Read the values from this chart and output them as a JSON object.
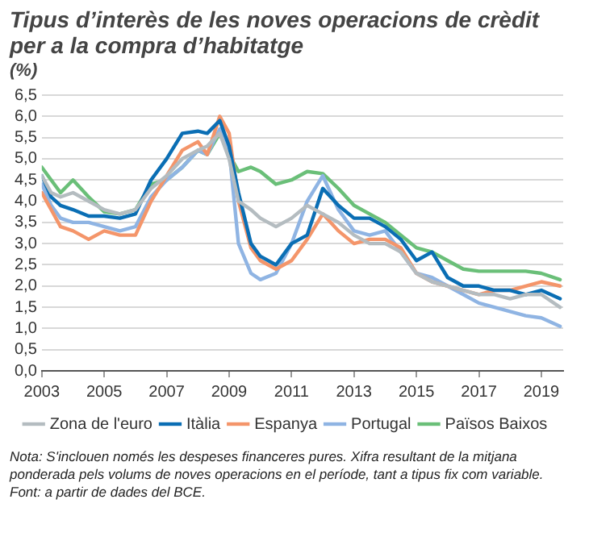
{
  "chart_data": {
    "type": "line",
    "title": "Tipus d’interès de les noves operacions de crèdit per a la compra d’habitatge",
    "ylabel": "(%)",
    "x": [
      2003,
      2003.3,
      2003.6,
      2004,
      2004.5,
      2005,
      2005.5,
      2006,
      2006.5,
      2007,
      2007.5,
      2008,
      2008.3,
      2008.7,
      2009,
      2009.3,
      2009.7,
      2010,
      2010.5,
      2011,
      2011.5,
      2012,
      2012.5,
      2013,
      2013.5,
      2014,
      2014.5,
      2015,
      2015.5,
      2016,
      2016.5,
      2017,
      2017.5,
      2018,
      2018.5,
      2019,
      2019.6
    ],
    "series": [
      {
        "name": "Zona de l'euro",
        "color": "#b4bcc0",
        "values": [
          4.6,
          4.2,
          4.1,
          4.2,
          4.0,
          3.8,
          3.7,
          3.8,
          4.3,
          4.6,
          5.0,
          5.2,
          5.3,
          5.6,
          5.0,
          4.0,
          3.8,
          3.6,
          3.4,
          3.6,
          3.9,
          3.7,
          3.5,
          3.2,
          3.0,
          3.0,
          2.8,
          2.3,
          2.1,
          2.0,
          1.9,
          1.8,
          1.8,
          1.7,
          1.8,
          1.8,
          1.5
        ]
      },
      {
        "name": "Itàlia",
        "color": "#0a6eb4",
        "values": [
          4.6,
          4.1,
          3.9,
          3.8,
          3.65,
          3.65,
          3.6,
          3.7,
          4.5,
          5.0,
          5.6,
          5.65,
          5.6,
          5.9,
          5.3,
          4.2,
          3.0,
          2.7,
          2.5,
          3.0,
          3.2,
          4.3,
          3.9,
          3.6,
          3.6,
          3.4,
          3.1,
          2.6,
          2.8,
          2.2,
          2.0,
          2.0,
          1.9,
          1.9,
          1.8,
          1.9,
          1.7
        ]
      },
      {
        "name": "Espanya",
        "color": "#f4956a",
        "values": [
          4.2,
          3.8,
          3.4,
          3.3,
          3.1,
          3.3,
          3.2,
          3.2,
          4.0,
          4.6,
          5.2,
          5.4,
          5.1,
          6.0,
          5.6,
          4.0,
          2.9,
          2.6,
          2.4,
          2.6,
          3.1,
          3.7,
          3.3,
          3.0,
          3.1,
          3.1,
          2.9,
          2.3,
          2.1,
          2.0,
          1.9,
          1.8,
          1.9,
          1.9,
          2.0,
          2.1,
          2.0
        ]
      },
      {
        "name": "Portugal",
        "color": "#8fb4e3",
        "values": [
          4.4,
          3.9,
          3.6,
          3.5,
          3.5,
          3.4,
          3.3,
          3.4,
          4.1,
          4.5,
          4.8,
          5.2,
          5.1,
          5.7,
          5.2,
          3.0,
          2.3,
          2.15,
          2.3,
          3.0,
          4.0,
          4.6,
          3.8,
          3.3,
          3.2,
          3.3,
          2.8,
          2.3,
          2.2,
          2.0,
          1.8,
          1.6,
          1.5,
          1.4,
          1.3,
          1.25,
          1.05
        ]
      },
      {
        "name": "Països Baixos",
        "color": "#6abf78",
        "values": [
          4.8,
          4.5,
          4.2,
          4.5,
          4.1,
          3.75,
          3.7,
          3.8,
          4.4,
          4.5,
          4.8,
          5.2,
          5.1,
          5.6,
          5.1,
          4.7,
          4.8,
          4.7,
          4.4,
          4.5,
          4.7,
          4.65,
          4.3,
          3.9,
          3.7,
          3.5,
          3.2,
          2.9,
          2.8,
          2.6,
          2.4,
          2.35,
          2.35,
          2.35,
          2.35,
          2.3,
          2.15
        ]
      }
    ],
    "xlim": [
      2003,
      2019.7
    ],
    "xticks": [
      2003,
      2005,
      2007,
      2009,
      2011,
      2013,
      2015,
      2017,
      2019
    ],
    "ylim": [
      0,
      6.5
    ],
    "yticks": [
      {
        "value": 0,
        "label": "0,0"
      },
      {
        "value": 0.5,
        "label": "0,5"
      },
      {
        "value": 1,
        "label": "1,0"
      },
      {
        "value": 1.5,
        "label": "1,5"
      },
      {
        "value": 2,
        "label": "2,0"
      },
      {
        "value": 2.5,
        "label": "2,5"
      },
      {
        "value": 3,
        "label": "3,0"
      },
      {
        "value": 3.5,
        "label": "3,5"
      },
      {
        "value": 4,
        "label": "4,0"
      },
      {
        "value": 4.5,
        "label": "4,5"
      },
      {
        "value": 5,
        "label": "5,0"
      },
      {
        "value": 5.5,
        "label": "5,5"
      },
      {
        "value": 6,
        "label": "6,0"
      },
      {
        "value": 6.5,
        "label": "6,5"
      }
    ],
    "grid": "y",
    "legend": "bottom",
    "marker": "none",
    "line_style": "solid",
    "annotations": [
      "Nota: S'inclouen només les despeses financeres pures. Xifra resultant de la mitjana ponderada pels volums de noves operacions en el període, tant a tipus fix com variable.",
      "Font: a partir de dades del BCE."
    ]
  }
}
